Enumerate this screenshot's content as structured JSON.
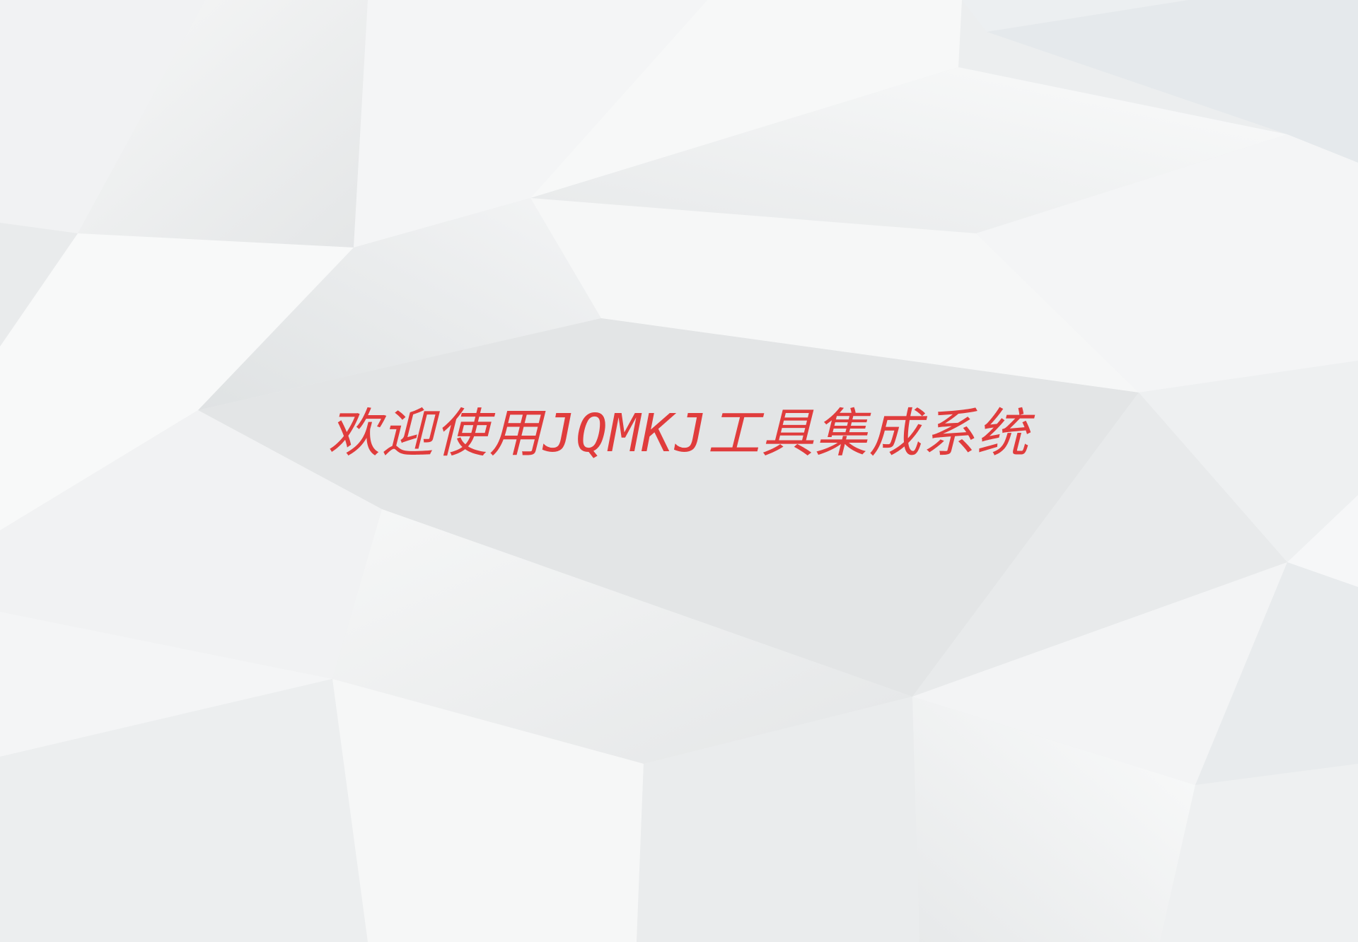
{
  "welcome": {
    "text": "欢迎使用JQMKJ工具集成系统",
    "color": "#e03c3c"
  },
  "background": {
    "style": "white low-poly geometric facets"
  }
}
